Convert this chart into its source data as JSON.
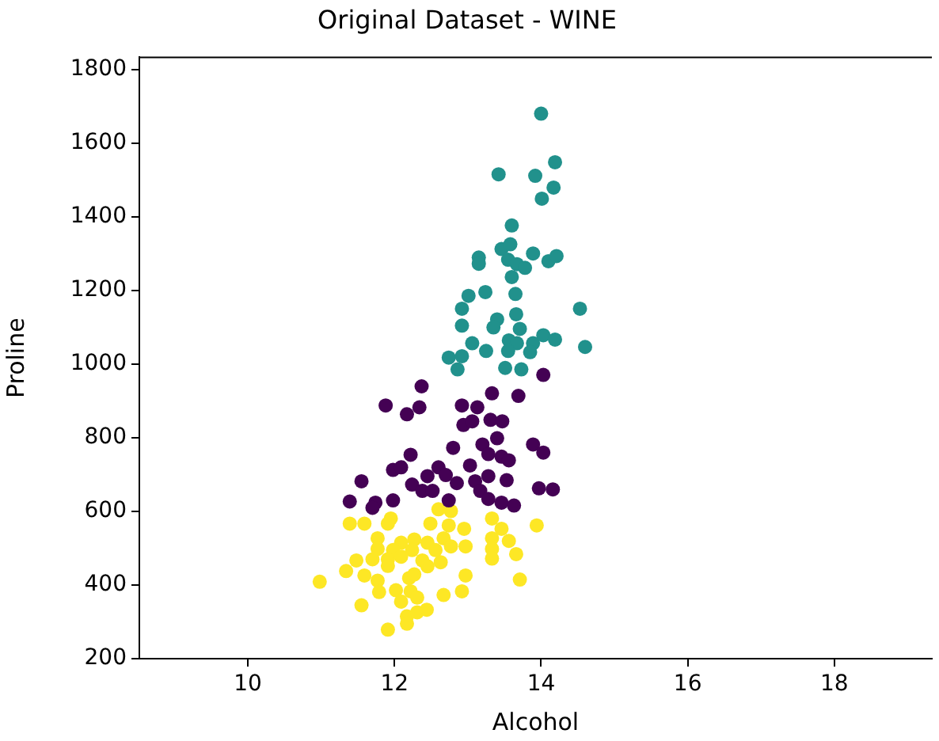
{
  "chart_data": {
    "type": "scatter",
    "title": "Original Dataset - WINE",
    "xlabel": "Alcohol",
    "ylabel": "Proline",
    "xlim": [
      8.52,
      19.33
    ],
    "ylim": [
      200,
      1834
    ],
    "xticks": [
      10,
      12,
      14,
      16,
      18
    ],
    "yticks": [
      200,
      400,
      600,
      800,
      1000,
      1200,
      1400,
      1600,
      1800
    ],
    "grid": false,
    "legend": false,
    "marker": "circle",
    "series": [
      {
        "color": "#21918c",
        "x": [
          14.0,
          14.19,
          13.42,
          13.92,
          14.17,
          14.01,
          13.6,
          13.46,
          13.58,
          13.55,
          13.67,
          13.78,
          13.89,
          14.1,
          14.21,
          13.15,
          13.15,
          13.6,
          13.24,
          13.01,
          13.65,
          12.92,
          14.53,
          13.4,
          13.35,
          12.92,
          13.66,
          13.71,
          13.06,
          13.56,
          13.67,
          13.89,
          14.03,
          14.19,
          14.6,
          12.74,
          12.92,
          13.25,
          13.55,
          13.85,
          12.86,
          13.51,
          13.73
        ],
        "values": [
          1681,
          1549,
          1516,
          1512,
          1480,
          1450,
          1377,
          1313,
          1326,
          1284,
          1272,
          1262,
          1301,
          1280,
          1294,
          1290,
          1273,
          1237,
          1196,
          1186,
          1191,
          1151,
          1151,
          1122,
          1100,
          1105,
          1136,
          1096,
          1057,
          1065,
          1057,
          1057,
          1079,
          1067,
          1047,
          1018,
          1022,
          1036,
          1036,
          1033,
          986,
          990,
          986
        ]
      },
      {
        "color": "#440154",
        "x": [
          14.03,
          12.37,
          13.33,
          13.69,
          11.88,
          12.34,
          12.17,
          12.92,
          13.13,
          12.94,
          13.06,
          13.31,
          13.47,
          13.4,
          13.89,
          14.03,
          12.8,
          13.2,
          13.28,
          13.46,
          13.56,
          13.03,
          12.22,
          11.98,
          12.09,
          12.6,
          12.45,
          12.7,
          12.85,
          13.1,
          13.28,
          13.53,
          12.24,
          12.38,
          12.52,
          13.17,
          11.55,
          13.97,
          14.16,
          11.39,
          11.74,
          11.7,
          11.98,
          12.74,
          13.28,
          13.46,
          13.63
        ],
        "values": [
          971,
          940,
          921,
          914,
          888,
          883,
          864,
          888,
          883,
          835,
          845,
          849,
          845,
          799,
          782,
          760,
          773,
          782,
          756,
          749,
          739,
          725,
          754,
          713,
          720,
          720,
          696,
          699,
          677,
          682,
          696,
          685,
          673,
          656,
          656,
          656,
          682,
          663,
          660,
          627,
          624,
          610,
          630,
          630,
          634,
          624,
          616
        ]
      },
      {
        "color": "#fde725",
        "x": [
          11.39,
          11.59,
          11.95,
          11.91,
          12.6,
          12.77,
          12.49,
          12.74,
          12.95,
          13.33,
          13.46,
          13.94,
          11.77,
          12.09,
          12.27,
          12.45,
          12.67,
          12.77,
          12.97,
          13.33,
          13.56,
          11.77,
          11.98,
          12.24,
          12.56,
          13.33,
          11.48,
          11.7,
          11.91,
          12.09,
          12.38,
          12.63,
          13.33,
          13.66,
          11.34,
          11.59,
          11.91,
          12.24,
          12.45,
          10.98,
          11.77,
          12.2,
          12.27,
          12.97,
          13.71,
          11.79,
          12.02,
          12.22,
          12.67,
          12.92,
          11.55,
          12.09,
          12.31,
          12.17,
          12.31,
          12.44,
          12.17,
          11.91
        ],
        "values": [
          567,
          567,
          581,
          567,
          606,
          601,
          567,
          562,
          553,
          581,
          553,
          562,
          527,
          515,
          524,
          515,
          527,
          505,
          505,
          527,
          520,
          498,
          495,
          495,
          495,
          498,
          467,
          470,
          470,
          477,
          467,
          462,
          472,
          484,
          438,
          426,
          452,
          null,
          451,
          409,
          412,
          419,
          429,
          426,
          415,
          381,
          386,
          383,
          373,
          383,
          345,
          355,
          366,
          315,
          326,
          333,
          295,
          279
        ]
      }
    ]
  }
}
